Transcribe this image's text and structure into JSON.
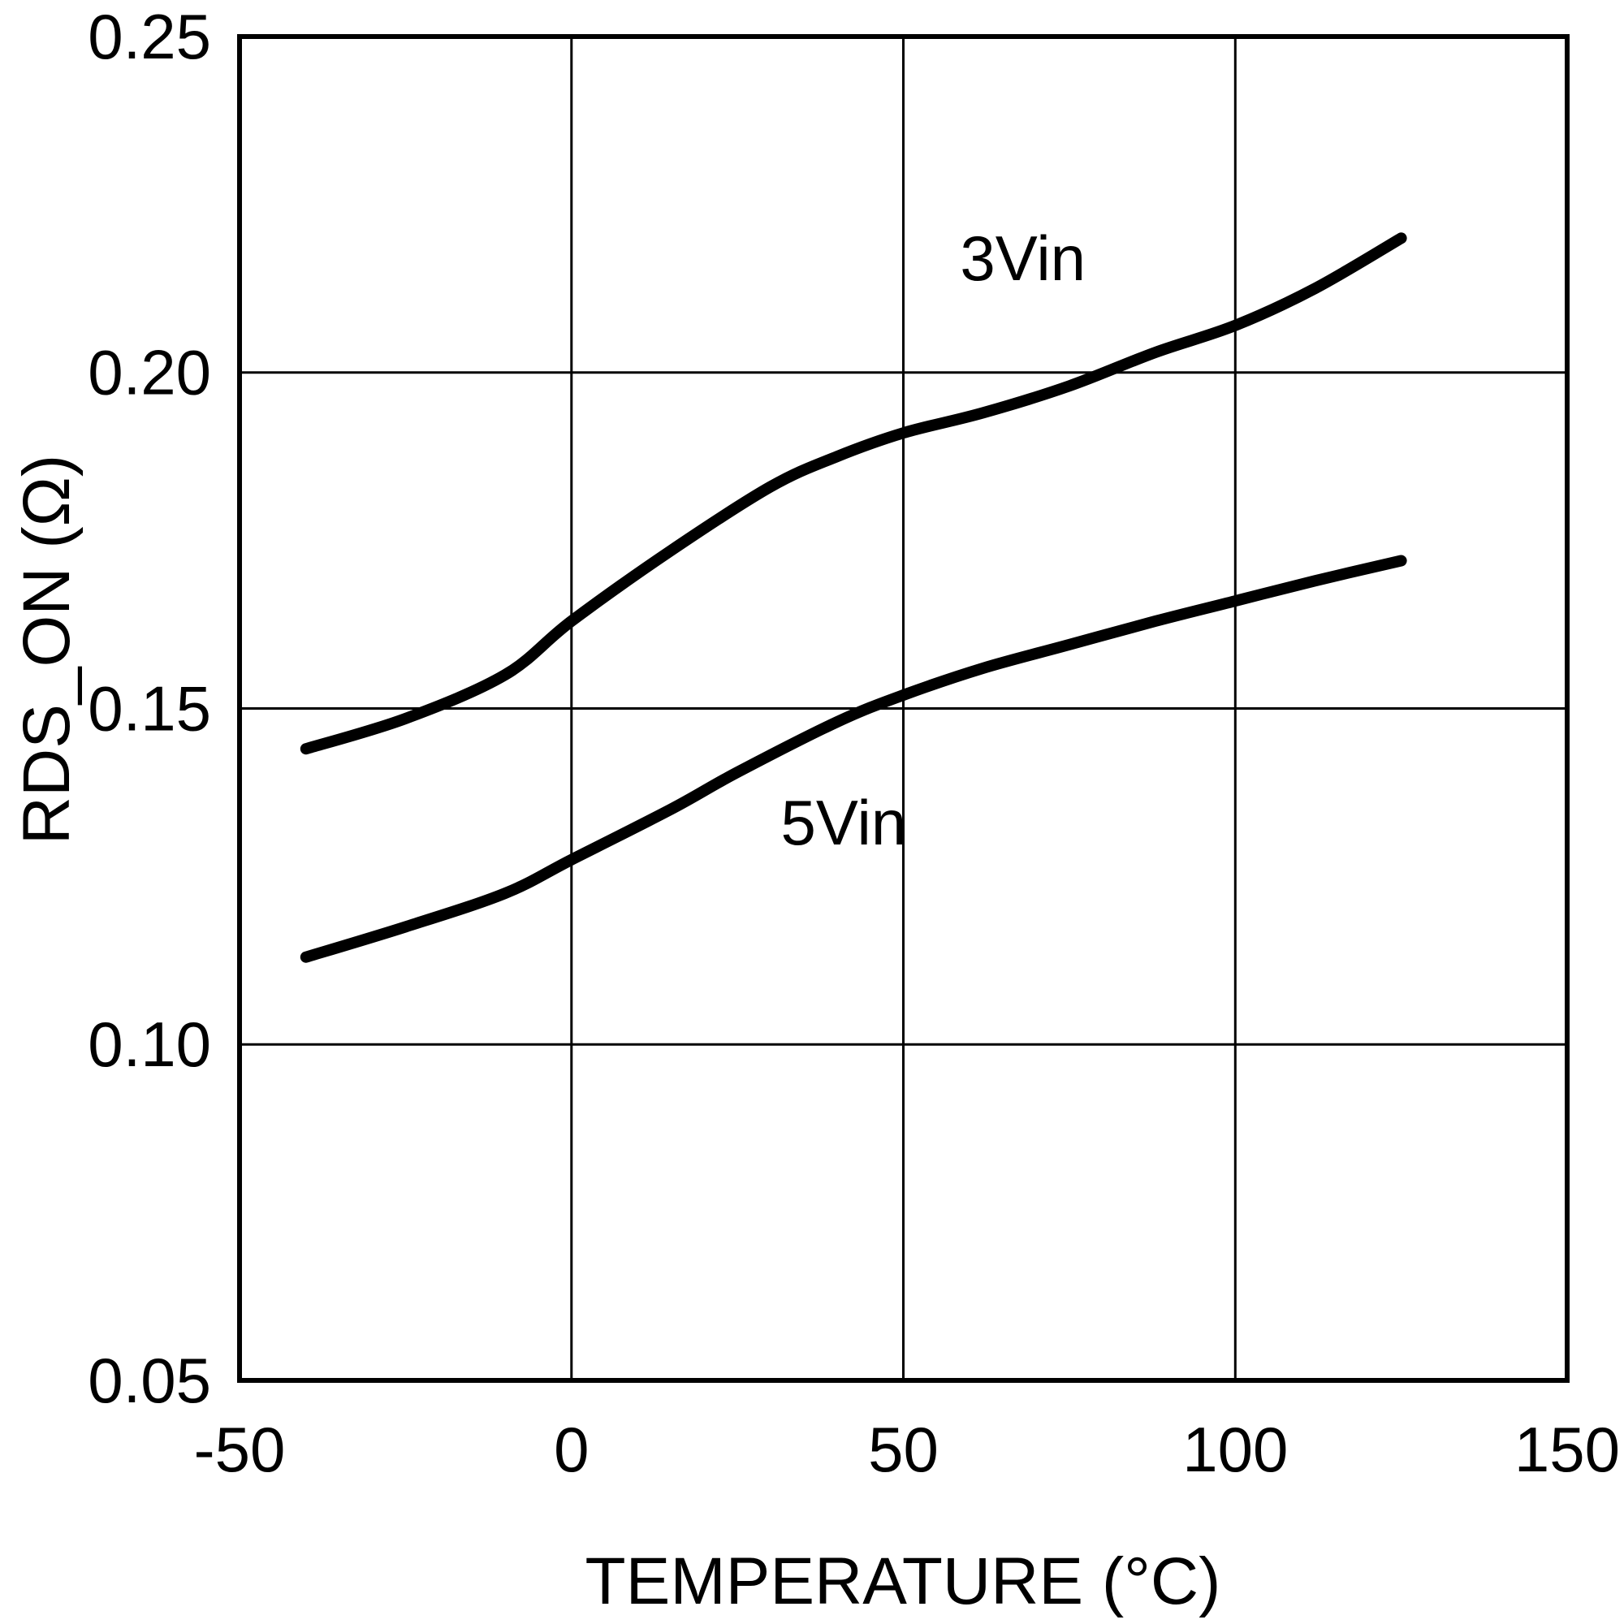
{
  "chart_data": {
    "type": "line",
    "title": "",
    "xlabel": "TEMPERATURE (°C)",
    "ylabel": "RDS_ON (Ω)",
    "xlim": [
      -50,
      150
    ],
    "ylim": [
      0.05,
      0.25
    ],
    "grid": true,
    "legend_position": "inline-annotations",
    "x_ticks": [
      {
        "value": -50,
        "label": "-50"
      },
      {
        "value": 0,
        "label": "0"
      },
      {
        "value": 50,
        "label": "50"
      },
      {
        "value": 100,
        "label": "100"
      },
      {
        "value": 150,
        "label": "150"
      }
    ],
    "y_ticks": [
      {
        "value": 0.05,
        "label": "0.05"
      },
      {
        "value": 0.1,
        "label": "0.10"
      },
      {
        "value": 0.15,
        "label": "0.15"
      },
      {
        "value": 0.2,
        "label": "0.20"
      },
      {
        "value": 0.25,
        "label": "0.25"
      }
    ],
    "line_color": "#000000",
    "line_width": 14,
    "series": [
      {
        "name": "3Vin",
        "points": [
          [
            -40,
            0.144
          ],
          [
            -25,
            0.1485
          ],
          [
            -10,
            0.155
          ],
          [
            0,
            0.163
          ],
          [
            15,
            0.1735
          ],
          [
            30,
            0.183
          ],
          [
            40,
            0.1875
          ],
          [
            50,
            0.191
          ],
          [
            62,
            0.194
          ],
          [
            75,
            0.198
          ],
          [
            88,
            0.203
          ],
          [
            100,
            0.207
          ],
          [
            112,
            0.2125
          ],
          [
            125,
            0.22
          ]
        ]
      },
      {
        "name": "5Vin",
        "points": [
          [
            -40,
            0.113
          ],
          [
            -25,
            0.1175
          ],
          [
            -10,
            0.1225
          ],
          [
            0,
            0.1275
          ],
          [
            15,
            0.135
          ],
          [
            25,
            0.1405
          ],
          [
            40,
            0.148
          ],
          [
            50,
            0.152
          ],
          [
            62,
            0.156
          ],
          [
            75,
            0.1595
          ],
          [
            88,
            0.163
          ],
          [
            100,
            0.166
          ],
          [
            112,
            0.169
          ],
          [
            125,
            0.172
          ]
        ]
      }
    ],
    "annotations": [
      {
        "text": "3Vin",
        "x": 68,
        "y": 0.217
      },
      {
        "text": "5Vin",
        "x": 41,
        "y": 0.133
      }
    ]
  }
}
